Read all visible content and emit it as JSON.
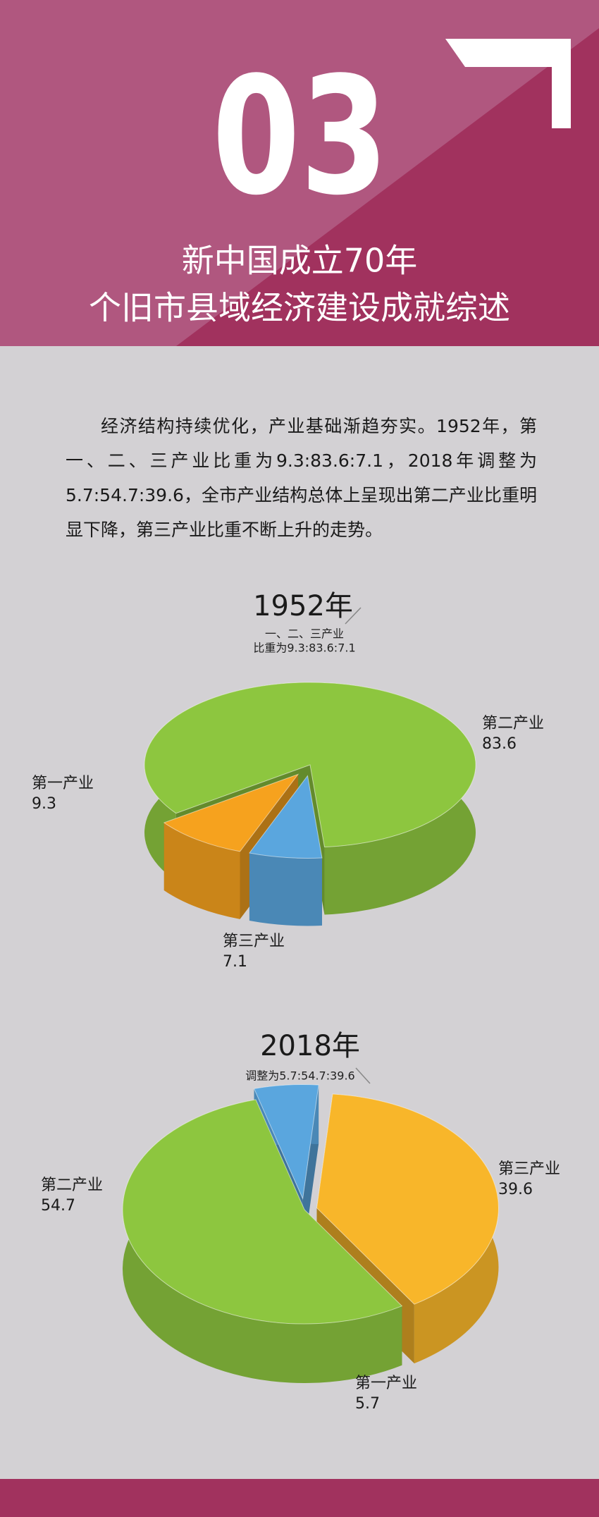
{
  "header": {
    "number": "03",
    "title": [
      "新中国成立70年",
      "个旧市县域经济建设成就综述"
    ]
  },
  "body": {
    "paragraph": "经济结构持续优化，产业基础渐趋夯实。1952年，第一、二、三产业比重为9.3:83.6:7.1，2018年调整为5.7:54.7:39.6，全市产业结构总体上呈现出第二产业比重明显下降，第三产业比重不断上升的走势。"
  },
  "chart_data": [
    {
      "type": "pie",
      "title": "1952年",
      "subtitle": [
        "一、二、三产业",
        "比重为9.3:83.6:7.1"
      ],
      "categories": [
        "第一产业",
        "第二产业",
        "第三产业"
      ],
      "values": [
        9.3,
        83.6,
        7.1
      ],
      "colors": [
        "#f6a21e",
        "#8dc63f",
        "#5aa6de"
      ]
    },
    {
      "type": "pie",
      "title": "2018年",
      "subtitle": [
        "调整为5.7:54.7:39.6"
      ],
      "categories": [
        "第一产业",
        "第二产业",
        "第三产业"
      ],
      "values": [
        5.7,
        54.7,
        39.6
      ],
      "colors": [
        "#5aa6de",
        "#8dc63f",
        "#f8b62a"
      ]
    }
  ]
}
